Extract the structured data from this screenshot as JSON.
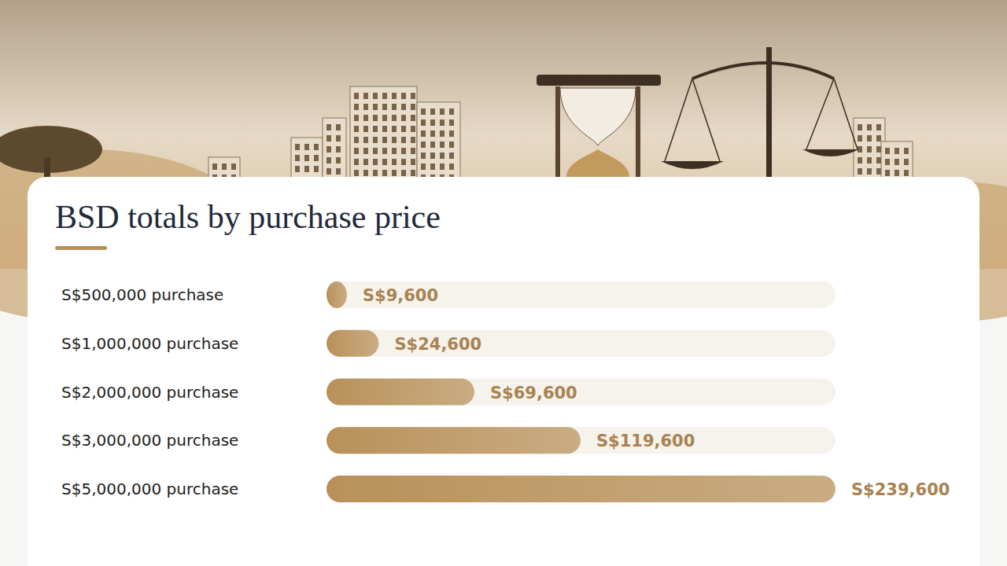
{
  "chart_data": {
    "type": "bar",
    "title": "BSD totals by purchase price",
    "orientation": "horizontal",
    "categories": [
      "S$500,000 purchase",
      "S$1,000,000 purchase",
      "S$2,000,000 purchase",
      "S$3,000,000 purchase",
      "S$5,000,000 purchase"
    ],
    "values": [
      9600,
      24600,
      69600,
      119600,
      239600
    ],
    "value_labels": [
      "S$9,600",
      "S$24,600",
      "S$69,600",
      "S$119,600",
      "S$239,600"
    ],
    "xlim": [
      0,
      239600
    ],
    "color": "#b8915a",
    "data_labels": true,
    "tick_labels": false,
    "grid": false
  }
}
